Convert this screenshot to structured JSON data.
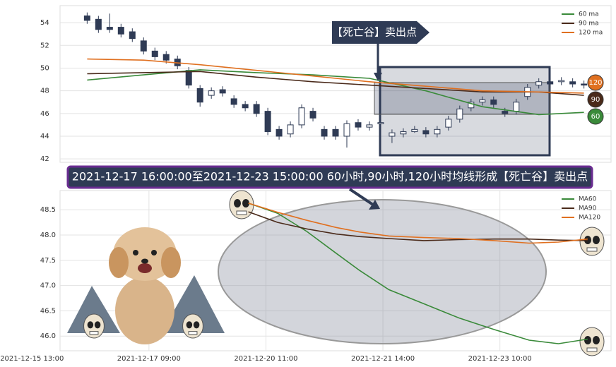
{
  "chart_data": [
    {
      "type": "candlestick",
      "x": [
        0,
        1,
        2,
        3,
        4,
        5,
        6,
        7,
        8,
        9,
        10,
        11,
        12,
        13,
        14,
        15,
        16,
        17,
        18,
        19,
        20,
        21,
        22,
        23,
        24,
        25,
        26,
        27,
        28,
        29,
        30,
        31,
        32,
        33,
        34,
        35,
        36,
        37,
        38,
        39,
        40,
        41,
        42,
        43,
        44
      ],
      "open": [
        54.6,
        54.3,
        53.6,
        53.6,
        53.2,
        52.4,
        51.5,
        51.2,
        50.8,
        49.8,
        48.2,
        47.6,
        48.1,
        47.3,
        46.8,
        46.8,
        46.2,
        44.6,
        44.2,
        45.0,
        46.2,
        44.6,
        44.6,
        44.0,
        45.2,
        44.8,
        45.1,
        44.0,
        44.2,
        44.4,
        44.5,
        44.2,
        44.8,
        45.5,
        46.5,
        47.0,
        47.2,
        46.2,
        46.2,
        47.5,
        48.5,
        48.8,
        48.8,
        48.8,
        48.6
      ],
      "close": [
        54.2,
        53.4,
        53.4,
        53.0,
        52.6,
        51.5,
        51.0,
        50.7,
        50.2,
        48.5,
        47.0,
        48.0,
        47.8,
        46.8,
        46.5,
        46.0,
        44.4,
        44.0,
        45.0,
        46.5,
        45.6,
        44.0,
        44.0,
        45.1,
        44.8,
        45.0,
        45.2,
        44.3,
        44.4,
        44.6,
        44.2,
        44.6,
        45.5,
        46.4,
        47.0,
        47.2,
        46.8,
        46.0,
        47.0,
        48.3,
        48.8,
        48.6,
        48.9,
        48.6,
        48.5
      ],
      "high": [
        54.9,
        54.6,
        54.8,
        53.9,
        53.5,
        52.7,
        51.8,
        51.5,
        51.1,
        50.1,
        48.5,
        48.3,
        48.4,
        47.6,
        47.1,
        47.1,
        46.5,
        44.9,
        45.3,
        46.8,
        46.5,
        44.9,
        44.9,
        45.4,
        45.5,
        45.3,
        45.5,
        44.6,
        44.7,
        44.9,
        44.8,
        44.9,
        45.8,
        46.7,
        47.3,
        47.5,
        47.5,
        46.5,
        47.3,
        48.6,
        49.1,
        49.1,
        49.2,
        49.1,
        48.9
      ],
      "low": [
        53.9,
        53.1,
        53.1,
        52.7,
        52.3,
        51.2,
        50.7,
        50.4,
        49.9,
        48.2,
        46.6,
        47.3,
        47.5,
        46.5,
        46.2,
        45.7,
        44.1,
        43.7,
        43.9,
        44.7,
        45.3,
        43.7,
        43.7,
        43.0,
        44.5,
        44.5,
        44.8,
        43.4,
        43.9,
        44.3,
        43.9,
        43.9,
        44.5,
        45.2,
        46.2,
        46.7,
        46.5,
        45.7,
        45.9,
        47.2,
        48.2,
        48.3,
        48.5,
        48.3,
        48.2
      ],
      "up_color": "#ffffff",
      "down_color": "#2f3b55",
      "edge_color": "#2f3b55",
      "xlim": [
        -2.4,
        46.4
      ],
      "ylim": [
        41.7,
        55.5
      ],
      "yticks": [
        42,
        44,
        46,
        48,
        50,
        52,
        54
      ],
      "grid": true,
      "legend": "upper right",
      "series": [
        {
          "name": "60 ma",
          "color": "#3a8a3a",
          "x": [
            0,
            5,
            10,
            15,
            20,
            25,
            30,
            35,
            40,
            44
          ],
          "values": [
            48.95,
            49.4,
            49.85,
            49.6,
            49.4,
            49.1,
            48.0,
            46.6,
            45.9,
            46.1
          ]
        },
        {
          "name": "90 ma",
          "color": "#4a2a1a",
          "x": [
            0,
            5,
            10,
            15,
            20,
            25,
            30,
            35,
            40,
            44
          ],
          "values": [
            49.5,
            49.6,
            49.7,
            49.2,
            48.8,
            48.5,
            48.2,
            47.9,
            47.9,
            47.6
          ]
        },
        {
          "name": "120 ma",
          "color": "#e07020",
          "x": [
            0,
            5,
            10,
            15,
            20,
            25,
            30,
            35,
            40,
            44
          ],
          "values": [
            50.8,
            50.7,
            50.3,
            49.8,
            49.3,
            48.8,
            48.4,
            48.0,
            47.9,
            47.8
          ]
        }
      ],
      "badges": [
        {
          "label": "120",
          "color": "#e07020"
        },
        {
          "label": "90",
          "color": "#4a2a1a"
        },
        {
          "label": "60",
          "color": "#3a8a3a"
        }
      ],
      "annotation": "【死亡谷】卖出点",
      "banner": "2021-12-17 16:00:00至2021-12-23 15:00:00 60小时,90小时,120小时均线形成【死亡谷】卖出点"
    },
    {
      "type": "line",
      "x": [
        37,
        42,
        47,
        52,
        56,
        61,
        67,
        73,
        79,
        85,
        90,
        95
      ],
      "xlim": [
        4.8,
        99
      ],
      "ylim": [
        45.71,
        48.88
      ],
      "xticks": [
        {
          "value": 0,
          "label": "2021-12-15 13:00"
        },
        {
          "value": 20,
          "label": "2021-12-17 09:00"
        },
        {
          "value": 40,
          "label": "2021-12-20 11:00"
        },
        {
          "value": 60,
          "label": "2021-12-21 14:00"
        },
        {
          "value": 80,
          "label": "2021-12-23 10:00"
        }
      ],
      "yticks": [
        {
          "value": 46,
          "label": "46.0"
        },
        46.5,
        {
          "value": 47,
          "label": "47.0"
        },
        47.5,
        {
          "value": 48,
          "label": "48.0"
        },
        48.5
      ],
      "grid": true,
      "legend": "upper right",
      "series": [
        {
          "name": "MA60",
          "color": "#3a8a3a",
          "values": [
            48.63,
            48.43,
            48.07,
            47.64,
            47.3,
            46.92,
            46.64,
            46.36,
            46.13,
            45.92,
            45.85,
            45.94
          ]
        },
        {
          "name": "MA90",
          "color": "#4a2a1a",
          "values": [
            48.46,
            48.25,
            48.12,
            48.02,
            47.97,
            47.93,
            47.89,
            47.91,
            47.92,
            47.92,
            47.9,
            47.89
          ]
        },
        {
          "name": "MA120",
          "color": "#e07020",
          "values": [
            48.63,
            48.45,
            48.29,
            48.15,
            48.06,
            47.98,
            47.95,
            47.93,
            47.89,
            47.84,
            47.86,
            47.92
          ]
        }
      ]
    }
  ]
}
